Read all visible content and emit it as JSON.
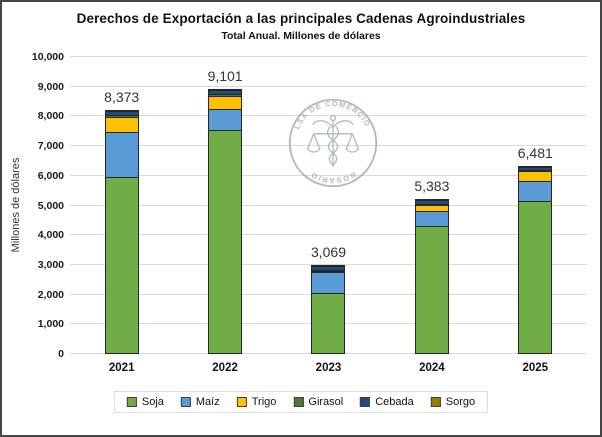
{
  "header": {
    "title": "Derechos de Exportación a las principales Cadenas Agroindustriales",
    "subtitle": "Total Anual. Millones de dólares"
  },
  "watermark": {
    "organization": "Bolsa de Comercio de Rosario",
    "arc_text_top": "BOLSA DE COMERCIO DE",
    "arc_text_bottom": "ROSARIO"
  },
  "chart_data": {
    "type": "bar",
    "stacked": true,
    "title": "Derechos de Exportación a las principales Cadenas Agroindustriales",
    "subtitle": "Total Anual. Millones de dólares",
    "ylabel": "Millones de dólares",
    "xlabel": "",
    "ylim": [
      0,
      10000
    ],
    "ytick_step": 1000,
    "grid": true,
    "legend_position": "bottom",
    "categories": [
      "2021",
      "2022",
      "2023",
      "2024",
      "2025"
    ],
    "totals": [
      8373,
      9101,
      3069,
      5383,
      6481
    ],
    "total_labels": [
      "8,373",
      "9,101",
      "3,069",
      "5,383",
      "6,481"
    ],
    "series": [
      {
        "name": "Soja",
        "color": "#70AD47",
        "values": [
          5960,
          7540,
          2050,
          4310,
          5150
        ]
      },
      {
        "name": "Maíz",
        "color": "#5B9BD5",
        "values": [
          1550,
          740,
          740,
          540,
          710
        ]
      },
      {
        "name": "Trigo",
        "color": "#FFC000",
        "values": [
          540,
          470,
          30,
          240,
          370
        ]
      },
      {
        "name": "Girasol",
        "color": "#4E7A30",
        "values": [
          90,
          110,
          60,
          80,
          60
        ]
      },
      {
        "name": "Cebada",
        "color": "#1F4E79",
        "values": [
          170,
          180,
          170,
          160,
          150
        ]
      },
      {
        "name": "Sorgo",
        "color": "#A07800",
        "values": [
          63,
          61,
          19,
          53,
          41
        ]
      }
    ]
  },
  "colors": {
    "grid": "#D9D9D9",
    "bar_border": "#262626",
    "text": "#1A1A1A",
    "watermark": "#93A1AE"
  }
}
